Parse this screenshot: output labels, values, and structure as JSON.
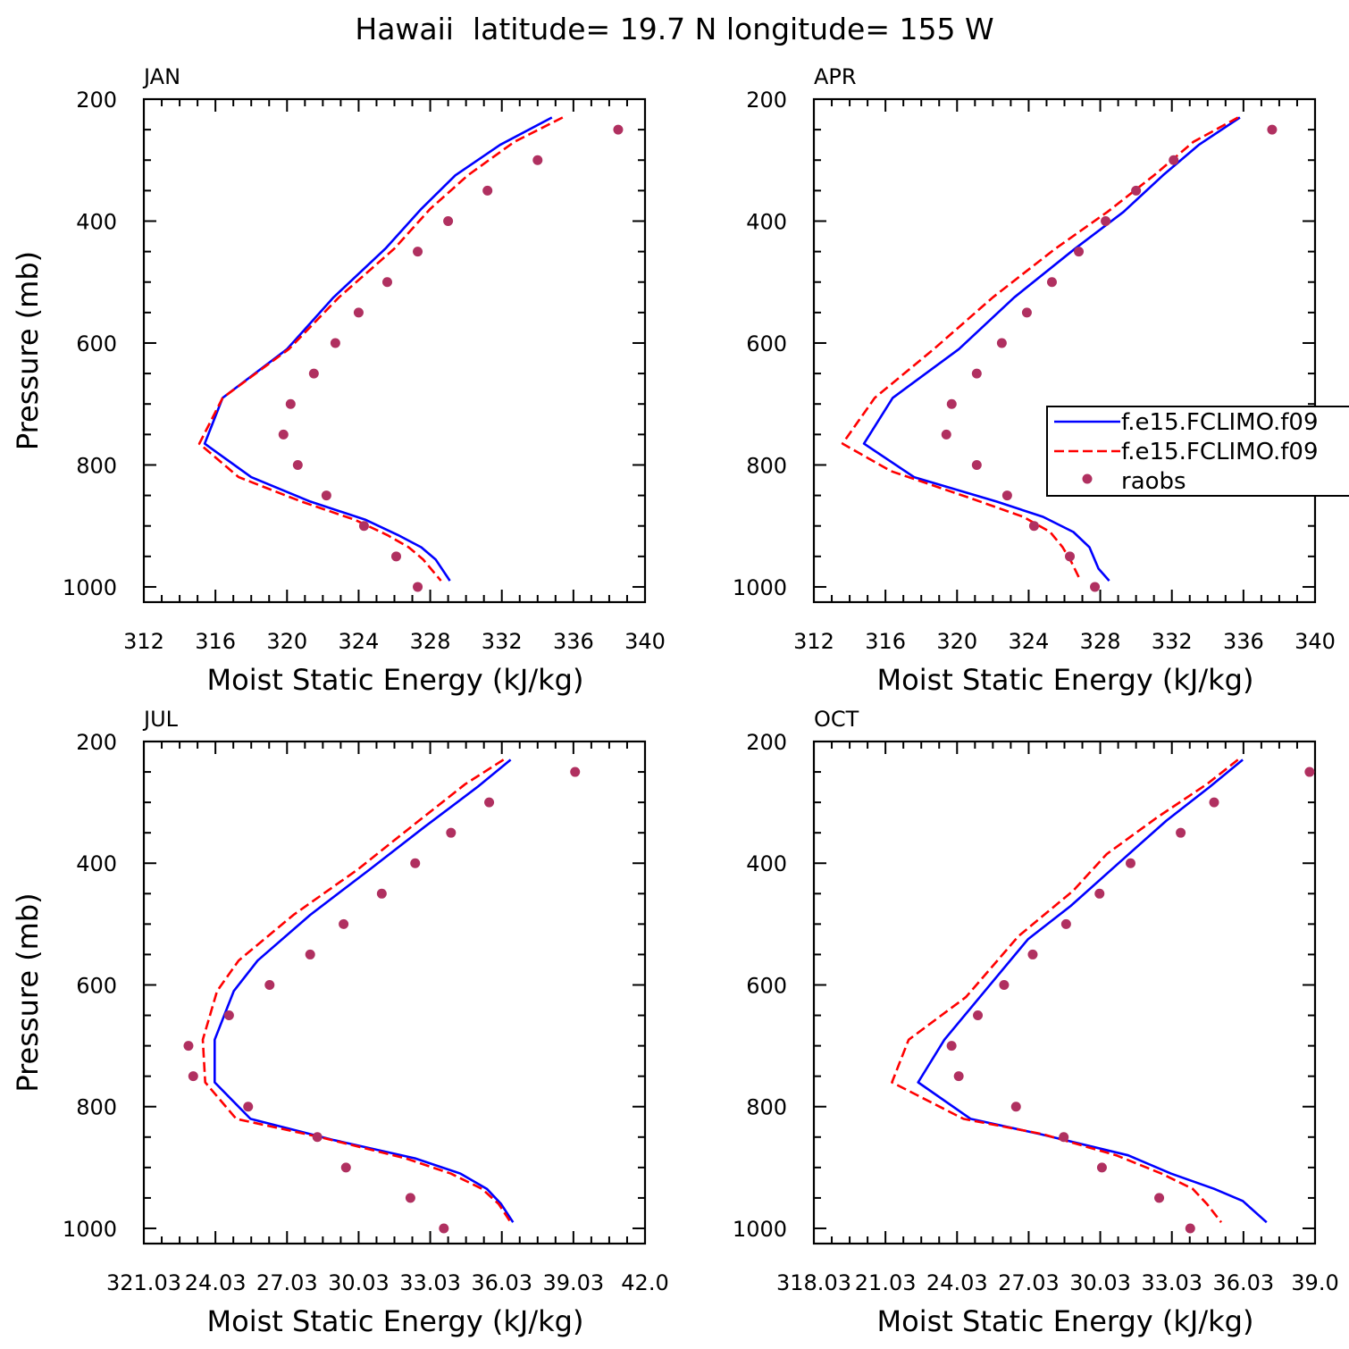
{
  "figure": {
    "title": "Hawaii  latitude= 19.7 N longitude= 155 W"
  },
  "legend": {
    "entries": [
      {
        "label": "f.e15.FCLIMO.f09",
        "style": "solid",
        "color": "#0000ff"
      },
      {
        "label": "f.e15.FCLIMO.f09",
        "style": "dashed",
        "color": "#ff0000"
      },
      {
        "label": "raobs",
        "style": "dot",
        "color": "#b03060"
      }
    ]
  },
  "colors": {
    "model_solid": "#0000ff",
    "model_dashed": "#ff0000",
    "raobs": "#b03060"
  },
  "chart_data": [
    {
      "type": "line",
      "panel_label": "JAN",
      "xlabel": "Moist Static Energy (kJ/kg)",
      "ylabel": "Pressure (mb)",
      "xlim": [
        312,
        340
      ],
      "ylim": [
        200,
        1000
      ],
      "y_inverted": true,
      "xticks": [
        312,
        316,
        320,
        324,
        328,
        332,
        336,
        340
      ],
      "xtick_labels": [
        "312",
        "316",
        "320",
        "324",
        "328",
        "332",
        "336",
        "340"
      ],
      "yticks": [
        200,
        400,
        600,
        800,
        1000
      ],
      "series": [
        {
          "name": "f.e15.FCLIMO.f09",
          "style": "solid",
          "x": [
            334.8,
            331.9,
            329.4,
            327.5,
            325.5,
            322.6,
            320.0,
            316.4,
            315.4,
            318.0,
            321.3,
            324.4,
            326.2,
            327.5,
            328.3,
            329.1
          ],
          "y": [
            230,
            275,
            325,
            380,
            445,
            525,
            610,
            690,
            765,
            820,
            860,
            890,
            915,
            935,
            955,
            990
          ]
        },
        {
          "name": "f.e15.FCLIMO.f09",
          "style": "dashed",
          "x": [
            335.4,
            332.7,
            330.1,
            328.0,
            326.0,
            322.9,
            320.1,
            316.4,
            315.1,
            317.3,
            320.8,
            323.8,
            325.6,
            326.8,
            327.6,
            328.6
          ],
          "y": [
            230,
            270,
            325,
            380,
            445,
            525,
            610,
            690,
            765,
            820,
            860,
            890,
            915,
            935,
            955,
            990
          ]
        },
        {
          "name": "raobs",
          "style": "dot",
          "x": [
            338.5,
            334.0,
            331.2,
            329.0,
            327.3,
            325.6,
            324.0,
            322.7,
            321.5,
            320.2,
            319.8,
            320.6,
            322.2,
            324.3,
            326.1,
            327.3
          ],
          "y": [
            250,
            300,
            350,
            400,
            450,
            500,
            550,
            600,
            650,
            700,
            750,
            800,
            850,
            900,
            950,
            1000
          ]
        }
      ]
    },
    {
      "type": "line",
      "panel_label": "APR",
      "xlabel": "Moist Static Energy (kJ/kg)",
      "ylabel": "",
      "xlim": [
        312,
        340
      ],
      "ylim": [
        200,
        1000
      ],
      "y_inverted": true,
      "xticks": [
        312,
        316,
        320,
        324,
        328,
        332,
        336,
        340
      ],
      "xtick_labels": [
        "312",
        "316",
        "320",
        "324",
        "328",
        "332",
        "336",
        "340"
      ],
      "yticks": [
        200,
        400,
        600,
        800,
        1000
      ],
      "series": [
        {
          "name": "f.e15.FCLIMO.f09",
          "style": "solid",
          "x": [
            335.8,
            333.5,
            331.5,
            329.3,
            326.6,
            323.2,
            320.1,
            316.4,
            314.8,
            317.6,
            322.2,
            324.8,
            326.5,
            327.4,
            327.9,
            328.5
          ],
          "y": [
            230,
            275,
            325,
            385,
            445,
            525,
            610,
            690,
            765,
            820,
            860,
            885,
            910,
            935,
            970,
            990
          ]
        },
        {
          "name": "f.e15.FCLIMO.f09",
          "style": "dashed",
          "x": [
            335.7,
            333.2,
            331.0,
            328.4,
            325.5,
            322.0,
            318.7,
            315.4,
            313.6,
            316.3,
            320.8,
            323.7,
            325.2,
            325.9,
            326.4,
            326.9
          ],
          "y": [
            230,
            270,
            325,
            385,
            445,
            525,
            610,
            690,
            765,
            810,
            855,
            885,
            910,
            935,
            960,
            990
          ]
        },
        {
          "name": "raobs",
          "style": "dot",
          "x": [
            337.6,
            332.1,
            330.0,
            328.3,
            326.8,
            325.3,
            323.9,
            322.5,
            321.1,
            319.7,
            319.4,
            321.1,
            322.8,
            324.3,
            326.3,
            327.7
          ],
          "y": [
            250,
            300,
            350,
            400,
            450,
            500,
            550,
            600,
            650,
            700,
            750,
            800,
            850,
            900,
            950,
            1000
          ]
        }
      ]
    },
    {
      "type": "line",
      "panel_label": "JUL",
      "xlabel": "Moist Static Energy (kJ/kg)",
      "ylabel": "Pressure (mb)",
      "xlim": [
        321.03,
        342.03
      ],
      "ylim": [
        200,
        1000
      ],
      "y_inverted": true,
      "xticks": [
        321.03,
        324.03,
        327.03,
        330.03,
        333.03,
        336.03,
        339.03,
        342.03
      ],
      "xtick_labels": [
        "321.03",
        "24.03",
        "27.03",
        "30.03",
        "33.03",
        "36.03",
        "39.03",
        "42.0"
      ],
      "yticks": [
        200,
        400,
        600,
        800,
        1000
      ],
      "series": [
        {
          "name": "f.e15.FCLIMO.f09",
          "style": "solid",
          "x": [
            336.4,
            335.0,
            332.8,
            330.5,
            328.0,
            325.8,
            324.8,
            324.0,
            324.0,
            325.5,
            329.0,
            332.4,
            334.3,
            335.4,
            336.0,
            336.5
          ],
          "y": [
            230,
            275,
            340,
            410,
            485,
            560,
            610,
            690,
            760,
            820,
            855,
            885,
            910,
            935,
            960,
            990
          ]
        },
        {
          "name": "f.e15.FCLIMO.f09",
          "style": "dashed",
          "x": [
            336.1,
            334.5,
            332.4,
            330.0,
            327.3,
            325.0,
            324.1,
            323.5,
            323.6,
            324.9,
            328.4,
            332.0,
            333.9,
            335.2,
            335.9,
            336.4
          ],
          "y": [
            230,
            270,
            335,
            410,
            485,
            560,
            610,
            690,
            760,
            820,
            850,
            885,
            910,
            935,
            960,
            990
          ]
        },
        {
          "name": "raobs",
          "style": "dot",
          "x": [
            339.1,
            335.5,
            333.9,
            332.4,
            331.0,
            329.4,
            328.0,
            326.3,
            324.6,
            322.9,
            323.1,
            325.4,
            328.3,
            329.5,
            332.2,
            333.6
          ],
          "y": [
            250,
            300,
            350,
            400,
            450,
            500,
            550,
            600,
            650,
            700,
            750,
            800,
            850,
            900,
            950,
            1000
          ]
        }
      ]
    },
    {
      "type": "line",
      "panel_label": "OCT",
      "xlabel": "Moist Static Energy (kJ/kg)",
      "ylabel": "",
      "xlim": [
        318.03,
        339.03
      ],
      "ylim": [
        200,
        1000
      ],
      "y_inverted": true,
      "xticks": [
        318.03,
        321.03,
        324.03,
        327.03,
        330.03,
        333.03,
        336.03,
        339.03
      ],
      "xtick_labels": [
        "318.03",
        "21.03",
        "24.03",
        "27.03",
        "30.03",
        "33.03",
        "36.03",
        "39.0"
      ],
      "yticks": [
        200,
        400,
        600,
        800,
        1000
      ],
      "series": [
        {
          "name": "f.e15.FCLIMO.f09",
          "style": "solid",
          "x": [
            336.0,
            334.6,
            332.8,
            330.8,
            328.8,
            327.0,
            325.3,
            323.5,
            322.4,
            324.6,
            327.5,
            331.2,
            333.0,
            334.8,
            336.0,
            337.0
          ],
          "y": [
            230,
            275,
            330,
            400,
            470,
            525,
            605,
            690,
            760,
            820,
            845,
            880,
            910,
            935,
            955,
            990
          ]
        },
        {
          "name": "f.e15.FCLIMO.f09",
          "style": "dashed",
          "x": [
            335.8,
            334.5,
            332.4,
            330.3,
            328.9,
            326.6,
            324.4,
            322.0,
            321.3,
            324.3,
            327.6,
            330.7,
            332.6,
            333.9,
            334.5,
            335.1
          ],
          "y": [
            230,
            270,
            325,
            385,
            445,
            520,
            620,
            690,
            760,
            820,
            845,
            880,
            910,
            935,
            960,
            990
          ]
        },
        {
          "name": "raobs",
          "style": "dot",
          "x": [
            338.8,
            334.8,
            333.4,
            331.3,
            330.0,
            328.6,
            327.2,
            326.0,
            324.9,
            323.8,
            324.1,
            326.5,
            328.5,
            330.1,
            332.5,
            333.8
          ],
          "y": [
            250,
            300,
            350,
            400,
            450,
            500,
            550,
            600,
            650,
            700,
            750,
            800,
            850,
            900,
            950,
            1000
          ]
        }
      ]
    }
  ]
}
